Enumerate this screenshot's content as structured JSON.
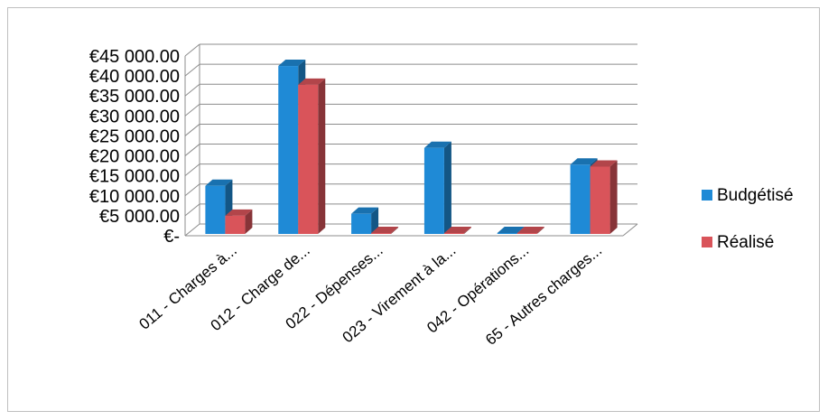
{
  "chart_data": {
    "type": "bar",
    "style": "3d-clustered-column",
    "categories": [
      "011 - Charges à...",
      "012 - Charge de...",
      "022 - Dépenses...",
      "023 - Virement à la...",
      "042 - Opérations...",
      "65 - Autres charges..."
    ],
    "series": [
      {
        "name": "Budgétisé",
        "color": "#1f8ad6",
        "values": [
          12500,
          42500,
          5500,
          22000,
          400,
          17800
        ]
      },
      {
        "name": "Réalisé",
        "color": "#d9545a",
        "values": [
          5000,
          37800,
          0,
          0,
          400,
          17300
        ]
      }
    ],
    "yticks": [
      "€-",
      "€5 000.00",
      "€10 000.00",
      "€15 000.00",
      "€20 000.00",
      "€25 000.00",
      "€30 000.00",
      "€35 000.00",
      "€40 000.00",
      "€45 000.00"
    ],
    "ylim": [
      0,
      45000
    ],
    "grid": true,
    "legend_position": "right"
  }
}
